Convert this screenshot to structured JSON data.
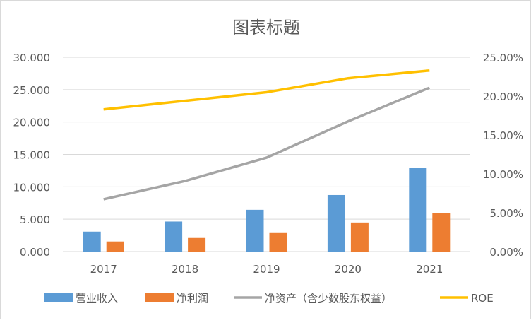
{
  "chart_data": {
    "type": "bar+line",
    "title": "图表标题",
    "categories": [
      "2017",
      "2018",
      "2019",
      "2020",
      "2021"
    ],
    "series": [
      {
        "name": "营业收入",
        "type": "bar",
        "axis": "left",
        "color": "#5b9bd5",
        "values": [
          3.08,
          4.64,
          6.45,
          8.73,
          12.9
        ]
      },
      {
        "name": "净利润",
        "type": "bar",
        "axis": "left",
        "color": "#ed7d31",
        "values": [
          1.56,
          2.1,
          2.97,
          4.49,
          5.94
        ]
      },
      {
        "name": "净资产（含少数股东权益）",
        "type": "line",
        "axis": "left",
        "color": "#a5a5a5",
        "values": [
          8.08,
          10.9,
          14.5,
          20.1,
          25.3
        ]
      },
      {
        "name": "ROE",
        "type": "line",
        "axis": "right",
        "color": "#ffc000",
        "values": [
          0.183,
          0.194,
          0.205,
          0.223,
          0.233
        ]
      }
    ],
    "left_axis": {
      "ylim": [
        0,
        30
      ],
      "ticks": [
        "0.000",
        "5.000",
        "10.000",
        "15.000",
        "20.000",
        "25.000",
        "30.000"
      ]
    },
    "right_axis": {
      "ylim": [
        0,
        0.25
      ],
      "ticks": [
        "0.00%",
        "5.00%",
        "10.00%",
        "15.00%",
        "20.00%",
        "25.00%"
      ]
    },
    "grid": true,
    "legend": "bottom"
  }
}
